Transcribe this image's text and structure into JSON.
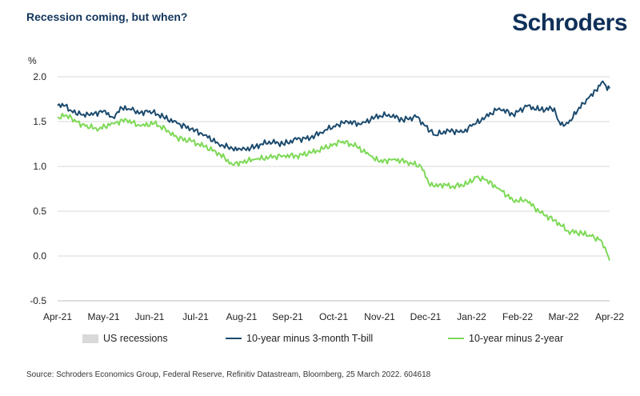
{
  "header": {
    "title": "Recession coming, but when?",
    "logo": "Schroders"
  },
  "legend": {
    "items": [
      {
        "label": "US recessions",
        "color": "#d9d9d9",
        "kind": "box"
      },
      {
        "label": "10-year minus 3-month T-bill",
        "color": "#1c4b6e",
        "kind": "line"
      },
      {
        "label": "10-year minus 2-year",
        "color": "#7ed957",
        "kind": "line"
      }
    ]
  },
  "footer": {
    "source": "Source: Schroders Economics Group, Federal Reserve, Refinitiv Datastream, Bloomberg, 25 March 2022. 604618"
  },
  "chart_data": {
    "type": "line",
    "title": "Recession coming, but when?",
    "ylabel": "%",
    "xlabel": "",
    "ylim": [
      -0.5,
      2.0
    ],
    "yticks": [
      -0.5,
      0.0,
      0.5,
      1.0,
      1.5,
      2.0
    ],
    "ytick_labels": [
      "-0.5",
      "0.0",
      "0.5",
      "1.0",
      "1.5",
      "2.0"
    ],
    "xlim": [
      0,
      12
    ],
    "categories": [
      "Apr-21",
      "May-21",
      "Jun-21",
      "Jul-21",
      "Aug-21",
      "Sep-21",
      "Oct-21",
      "Nov-21",
      "Dec-21",
      "Jan-22",
      "Feb-22",
      "Mar-22",
      "Apr-22"
    ],
    "grid": "horizontal",
    "series": [
      {
        "name": "10-year minus 3-month T-bill",
        "color": "#1c4b6e",
        "x": [
          0,
          0.1,
          0.3,
          0.5,
          0.7,
          1.0,
          1.2,
          1.4,
          1.6,
          1.8,
          2.0,
          2.3,
          2.6,
          2.9,
          3.2,
          3.5,
          3.8,
          4.0,
          4.3,
          4.6,
          4.9,
          5.2,
          5.5,
          5.8,
          6.0,
          6.3,
          6.6,
          6.9,
          7.2,
          7.5,
          7.8,
          8.0,
          8.2,
          8.5,
          8.8,
          9.0,
          9.3,
          9.6,
          9.9,
          10.2,
          10.5,
          10.8,
          10.9,
          11.0,
          11.1,
          11.3,
          11.5,
          11.7,
          11.85,
          11.95,
          12.0
        ],
        "y": [
          1.68,
          1.7,
          1.62,
          1.58,
          1.57,
          1.62,
          1.55,
          1.65,
          1.63,
          1.6,
          1.62,
          1.55,
          1.48,
          1.42,
          1.35,
          1.25,
          1.2,
          1.18,
          1.22,
          1.28,
          1.25,
          1.3,
          1.32,
          1.4,
          1.45,
          1.5,
          1.47,
          1.55,
          1.58,
          1.52,
          1.55,
          1.45,
          1.35,
          1.4,
          1.38,
          1.45,
          1.55,
          1.65,
          1.58,
          1.67,
          1.63,
          1.65,
          1.5,
          1.45,
          1.48,
          1.62,
          1.75,
          1.85,
          1.95,
          1.85,
          1.87
        ]
      },
      {
        "name": "10-year minus 2-year",
        "color": "#7ed957",
        "x": [
          0,
          0.2,
          0.4,
          0.6,
          0.9,
          1.2,
          1.5,
          1.8,
          2.1,
          2.4,
          2.6,
          2.9,
          3.2,
          3.5,
          3.8,
          4.0,
          4.3,
          4.6,
          4.9,
          5.2,
          5.5,
          5.8,
          6.0,
          6.2,
          6.5,
          6.8,
          7.0,
          7.3,
          7.6,
          7.9,
          8.1,
          8.3,
          8.6,
          8.9,
          9.1,
          9.3,
          9.6,
          9.9,
          10.2,
          10.5,
          10.8,
          11.1,
          11.4,
          11.6,
          11.8,
          11.9,
          12.0
        ],
        "y": [
          1.55,
          1.57,
          1.5,
          1.45,
          1.42,
          1.48,
          1.52,
          1.45,
          1.48,
          1.4,
          1.32,
          1.28,
          1.22,
          1.15,
          1.02,
          1.05,
          1.08,
          1.1,
          1.12,
          1.12,
          1.15,
          1.2,
          1.25,
          1.28,
          1.22,
          1.12,
          1.05,
          1.08,
          1.05,
          1.0,
          0.78,
          0.8,
          0.78,
          0.8,
          0.88,
          0.85,
          0.75,
          0.62,
          0.62,
          0.48,
          0.4,
          0.28,
          0.25,
          0.22,
          0.18,
          0.1,
          -0.05
        ]
      }
    ]
  }
}
